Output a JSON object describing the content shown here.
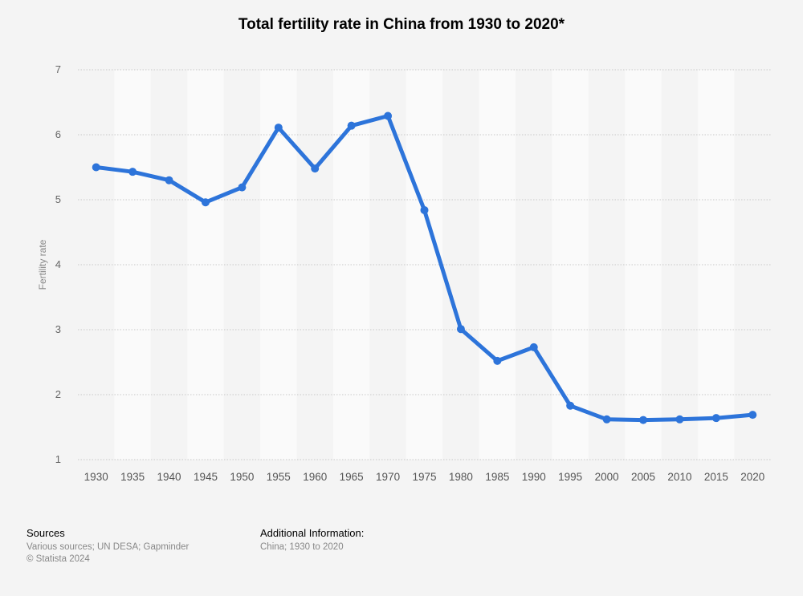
{
  "title": "Total fertility rate in China from 1930 to 2020*",
  "footer": {
    "sources_heading": "Sources",
    "sources_text": "Various sources; UN DESA; Gapminder",
    "copyright": "© Statista 2024",
    "additional_heading": "Additional Information:",
    "additional_text": "China; 1930 to 2020"
  },
  "colors": {
    "line": "#2d74da",
    "background": "#f4f4f4",
    "band_light": "#fafafa",
    "band_dark": "#f4f4f4"
  },
  "chart_data": {
    "type": "line",
    "title": "Total fertility rate in China from 1930 to 2020*",
    "xlabel": "",
    "ylabel": "Fertility rate",
    "categories": [
      "1930",
      "1935",
      "1940",
      "1945",
      "1950",
      "1955",
      "1960",
      "1965",
      "1970",
      "1975",
      "1980",
      "1985",
      "1990",
      "1995",
      "2000",
      "2005",
      "2010",
      "2015",
      "2020"
    ],
    "series": [
      {
        "values": [
          5.5,
          5.43,
          5.3,
          4.96,
          5.19,
          6.11,
          5.48,
          6.14,
          6.29,
          4.84,
          3.01,
          2.52,
          2.73,
          1.83,
          1.62,
          1.61,
          1.62,
          1.64,
          1.69
        ]
      }
    ],
    "ylim": [
      1,
      7
    ],
    "yticks": [
      1,
      2,
      3,
      4,
      5,
      6,
      7
    ],
    "grid": true,
    "legend": "none"
  }
}
